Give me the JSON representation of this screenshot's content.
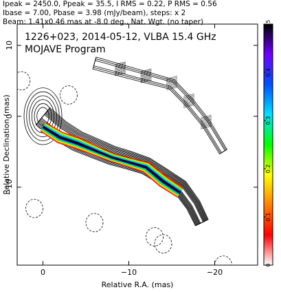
{
  "header": {
    "line1": "Ipeak = 2450.0, Ppeak = 35.5, I RMS = 0.22, P RMS = 0.56",
    "line2": "Ibase = 7.00, Pbase = 3.98 (mJy/beam), steps: x 2",
    "line3": "Beam: 1.41x0.46 mas at -8.0 deg., Nat. Wgt. (no taper)"
  },
  "chart_data": {
    "type": "heatmap",
    "title": "1226+023, 2014-05-12, VLBA 15.4 GHz",
    "subtitle": "MOJAVE Program",
    "xlabel": "Relative R.A. (mas)",
    "ylabel": "Relative Declination (mas)",
    "xlim": [
      3,
      -25
    ],
    "ylim": [
      -21,
      13
    ],
    "xticks": [
      0,
      -10,
      -20
    ],
    "yticks": [
      10,
      0,
      -10
    ],
    "xtick_labels": [
      "0",
      "−10",
      "−20"
    ],
    "ytick_labels": [
      "10",
      "0",
      "−10"
    ],
    "colorbar": {
      "range": [
        0,
        0.5
      ],
      "ticks": [
        0,
        0.1,
        0.2,
        0.3,
        0.4,
        0.5
      ],
      "tick_labels": [
        "0",
        "0.1",
        "0.2",
        "0.3",
        "0.4",
        "0.5"
      ],
      "colors": [
        "#ffffff",
        "#ff0000",
        "#ff8000",
        "#ffff00",
        "#00ff00",
        "#00e0ff",
        "#0050ff",
        "#7000ff",
        "#000000"
      ]
    },
    "total_intensity_jet": {
      "core": [
        0,
        0
      ],
      "ridge": [
        [
          0,
          0
        ],
        [
          -2,
          -2
        ],
        [
          -4,
          -3.5
        ],
        [
          -6,
          -4.5
        ],
        [
          -8,
          -5.5
        ],
        [
          -10,
          -6.2
        ],
        [
          -12,
          -7
        ],
        [
          -14,
          -8.5
        ],
        [
          -16,
          -10
        ],
        [
          -17.5,
          -12.5
        ],
        [
          -18.5,
          -15
        ]
      ],
      "contour_levels": 9
    },
    "polarization_jet": {
      "ridge": [
        [
          0,
          -1.5
        ],
        [
          -2,
          -3
        ],
        [
          -4,
          -3.8
        ],
        [
          -6,
          -4.8
        ],
        [
          -8,
          -5.8
        ],
        [
          -10,
          -6.5
        ],
        [
          -12,
          -7.2
        ],
        [
          -14,
          -9.2
        ],
        [
          -16,
          -10.8
        ]
      ],
      "peak_fraction": 0.45
    },
    "offset_polarization_contours": {
      "ridge": [
        [
          -6,
          7.5
        ],
        [
          -9,
          6.5
        ],
        [
          -12,
          5.5
        ],
        [
          -15,
          4.5
        ],
        [
          -17,
          2
        ],
        [
          -19,
          -1
        ],
        [
          -21,
          -5
        ]
      ]
    }
  }
}
